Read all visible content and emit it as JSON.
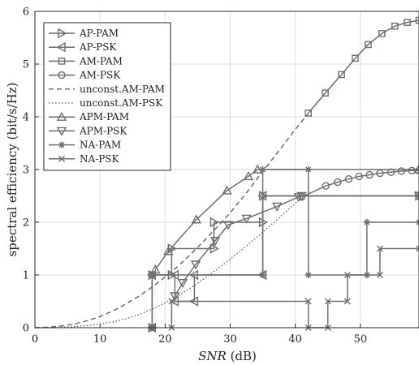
{
  "chart_data": {
    "type": "line",
    "xlabel_main": "SNR",
    "xlabel_unit": " (dB)",
    "ylabel": "spectral efficiency (bit/s/Hz)",
    "xlim": [
      0,
      59
    ],
    "ylim": [
      0,
      6
    ],
    "xticks": [
      0,
      10,
      20,
      30,
      40,
      50
    ],
    "yticks": [
      0,
      1,
      2,
      3,
      4,
      5,
      6
    ],
    "grid": true,
    "legend_position": "top-left",
    "line_color": "#6e6e6e",
    "series": [
      {
        "name": "AP-PAM",
        "marker": "triangle-right",
        "style": "solid",
        "x": [
          18,
          18,
          21,
          21,
          27.5,
          27.5,
          35,
          35,
          59
        ],
        "y": [
          0,
          1,
          1,
          1.5,
          1.5,
          2,
          2,
          2.5,
          2.5
        ]
      },
      {
        "name": "AP-PSK",
        "marker": "triangle-left",
        "style": "solid",
        "x": [
          18,
          18,
          21.5,
          21.5,
          24.5,
          24.5,
          35,
          35,
          59
        ],
        "y": [
          0,
          1,
          1,
          0.5,
          0.5,
          1,
          1,
          2.5,
          2.5
        ]
      },
      {
        "name": "AM-PAM",
        "marker": "square",
        "style": "solid",
        "x": [
          42,
          44.6,
          47.1,
          49.2,
          51.2,
          53.3,
          55.3,
          57.2,
          59
        ],
        "y": [
          4.07,
          4.45,
          4.8,
          5.11,
          5.37,
          5.58,
          5.72,
          5.79,
          5.83
        ]
      },
      {
        "name": "AM-PSK",
        "marker": "circle",
        "style": "solid",
        "x": [
          41,
          44.7,
          46.5,
          48.2,
          49.8,
          51.4,
          53,
          54.7,
          56.3,
          57.9,
          59
        ],
        "y": [
          2.48,
          2.69,
          2.76,
          2.82,
          2.87,
          2.9,
          2.93,
          2.95,
          2.97,
          2.98,
          2.98
        ]
      },
      {
        "name": "unconst.AM-PAM",
        "marker": "none",
        "style": "dashed",
        "x": [
          0,
          2,
          4,
          6,
          8,
          10,
          12,
          14,
          16,
          18,
          20,
          22,
          24,
          26,
          28,
          30,
          32,
          34,
          36,
          38,
          40,
          42
        ],
        "y": [
          0,
          0.01,
          0.03,
          0.07,
          0.13,
          0.21,
          0.32,
          0.45,
          0.6,
          0.77,
          0.96,
          1.17,
          1.4,
          1.65,
          1.91,
          2.18,
          2.48,
          2.8,
          3.12,
          3.44,
          3.76,
          4.07
        ]
      },
      {
        "name": "unconst.AM-PSK",
        "marker": "none",
        "style": "dotted",
        "x": [
          0,
          2,
          4,
          6,
          8,
          10,
          12,
          14,
          16,
          18,
          20,
          22,
          24,
          26,
          28,
          30,
          32,
          34,
          36,
          38,
          40,
          41
        ],
        "y": [
          0,
          0,
          0.01,
          0.02,
          0.04,
          0.07,
          0.11,
          0.17,
          0.25,
          0.35,
          0.47,
          0.61,
          0.76,
          0.93,
          1.11,
          1.3,
          1.5,
          1.71,
          1.92,
          2.14,
          2.36,
          2.48
        ]
      },
      {
        "name": "APM-PAM",
        "marker": "triangle-up",
        "style": "solid",
        "x": [
          18.5,
          20.5,
          24.8,
          29.5,
          32.8,
          34.2,
          59
        ],
        "y": [
          1.1,
          1.45,
          2.05,
          2.6,
          2.87,
          3.0,
          3.0
        ]
      },
      {
        "name": "APM-PSK",
        "marker": "triangle-down",
        "style": "solid",
        "x": [
          21.5,
          22.7,
          24.7,
          27.7,
          29.7,
          32.5,
          37.2,
          40.5,
          41,
          59
        ],
        "y": [
          0.6,
          0.85,
          1.2,
          1.65,
          1.95,
          2.07,
          2.3,
          2.48,
          2.5,
          2.5
        ]
      },
      {
        "name": "NA-PAM",
        "marker": "star",
        "style": "solid",
        "x": [
          18,
          18,
          35,
          35,
          42,
          42,
          51,
          51,
          59
        ],
        "y": [
          0,
          1,
          1,
          3,
          3,
          1,
          1,
          2,
          2
        ]
      },
      {
        "name": "NA-PSK",
        "marker": "x",
        "style": "solid",
        "x": [
          21,
          21,
          42,
          42,
          45,
          45,
          48,
          48,
          53,
          53,
          59
        ],
        "y": [
          0,
          0.5,
          0.5,
          0,
          0,
          0.5,
          0.5,
          1,
          1,
          1.5,
          1.5
        ]
      }
    ]
  }
}
